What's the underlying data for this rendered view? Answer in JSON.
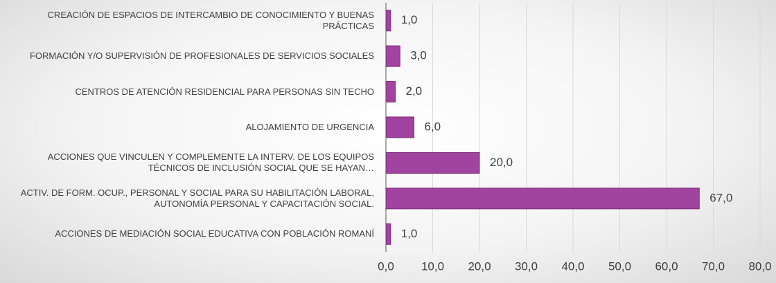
{
  "chart_data": {
    "type": "barh",
    "categories": [
      "CREACIÓN DE ESPACIOS DE INTERCAMBIO DE CONOCIMIENTO Y BUENAS PRÁCTICAS",
      "FORMACIÓN Y/O SUPERVISIÓN DE PROFESIONALES DE SERVICIOS SOCIALES",
      "CENTROS DE ATENCIÓN RESIDENCIAL PARA PERSONAS SIN TECHO",
      "ALOJAMIENTO DE URGENCIA",
      "ACCIONES QUE VINCULEN Y COMPLEMENTE LA INTERV. DE LOS EQUIPOS TÉCNICOS DE INCLUSIÓN SOCIAL QUE SE HAYAN…",
      "ACTIV. DE FORM. OCUP., PERSONAL Y SOCIAL PARA SU HABILITACIÓN LABORAL, AUTONOMÍA PERSONAL Y CAPACITACIÓN SOCIAL.",
      "ACCIONES DE MEDIACIÓN SOCIAL EDUCATIVA CON POBLACIÓN ROMANÍ"
    ],
    "values": [
      1,
      3,
      2,
      6,
      20,
      67,
      1
    ],
    "value_labels": [
      "1,0",
      "3,0",
      "2,0",
      "6,0",
      "20,0",
      "67,0",
      "1,0"
    ],
    "color": "#a0449f",
    "xlim": [
      0,
      80
    ],
    "xticks": [
      {
        "value": 0,
        "label": "0,0"
      },
      {
        "value": 10,
        "label": "10,0"
      },
      {
        "value": 20,
        "label": "20,0"
      },
      {
        "value": 30,
        "label": "30,0"
      },
      {
        "value": 40,
        "label": "40,0"
      },
      {
        "value": 50,
        "label": "50,0"
      },
      {
        "value": 60,
        "label": "60,0"
      },
      {
        "value": 70,
        "label": "70,0"
      },
      {
        "value": 80,
        "label": "80,0"
      }
    ],
    "grid": true
  }
}
